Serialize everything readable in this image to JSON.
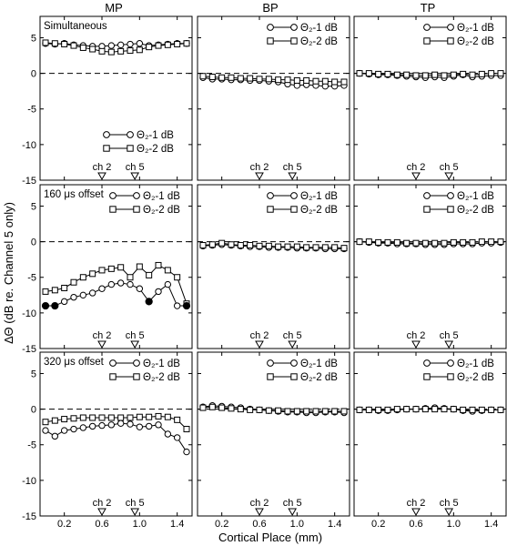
{
  "figure": {
    "ylabel": "ΔΘ (dB re. Channel 5 only)",
    "xlabel": "Cortical Place (mm)"
  },
  "chart_data": {
    "type": "line",
    "ylim": [
      -15,
      8
    ],
    "xlim": [
      0,
      1.5
    ],
    "yticks": [
      5,
      0,
      -5,
      -10,
      -15
    ],
    "xticks": [
      0.2,
      0.6,
      1.0,
      1.4
    ],
    "xtick_labels": [
      "0.2",
      "0.6",
      "1.0",
      "1.4"
    ],
    "columns": [
      "MP",
      "BP",
      "TP"
    ],
    "rows": [
      "Simultaneous",
      "160 μs offset",
      "320 μs offset"
    ],
    "channel_markers": [
      {
        "label": "ch 2",
        "x": 0.6
      },
      {
        "label": "ch 5",
        "x": 0.95
      }
    ],
    "legend": [
      "Θ₂-1 dB",
      "Θ₂-2 dB"
    ],
    "reference_line_y": 0,
    "x": [
      0.0,
      0.1,
      0.2,
      0.3,
      0.4,
      0.5,
      0.6,
      0.7,
      0.8,
      0.9,
      1.0,
      1.1,
      1.2,
      1.3,
      1.4,
      1.5
    ],
    "panels": [
      {
        "row": 0,
        "col": 0,
        "series": [
          {
            "values": [
              4.2,
              4.1,
              4.2,
              4.0,
              3.9,
              3.8,
              3.8,
              3.9,
              4.0,
              4.1,
              4.2,
              3.9,
              4.0,
              4.1,
              4.2,
              4.2
            ]
          },
          {
            "values": [
              4.3,
              4.2,
              4.1,
              3.9,
              3.6,
              3.4,
              3.1,
              3.0,
              3.1,
              3.2,
              3.3,
              3.7,
              3.9,
              4.0,
              4.1,
              4.2
            ]
          }
        ]
      },
      {
        "row": 0,
        "col": 1,
        "series": [
          {
            "values": [
              -0.6,
              -0.8,
              -0.8,
              -0.9,
              -0.9,
              -1.0,
              -1.0,
              -1.1,
              -1.2,
              -1.5,
              -1.7,
              -1.6,
              -1.7,
              -1.8,
              -1.8,
              -1.7
            ]
          },
          {
            "values": [
              -0.4,
              -0.5,
              -0.6,
              -0.6,
              -0.7,
              -0.7,
              -0.8,
              -0.8,
              -0.9,
              -0.9,
              -1.0,
              -1.0,
              -1.1,
              -1.1,
              -1.2,
              -1.2
            ]
          }
        ]
      },
      {
        "row": 0,
        "col": 2,
        "series": [
          {
            "values": [
              0.0,
              -0.1,
              -0.2,
              -0.2,
              -0.3,
              -0.4,
              -0.5,
              -0.6,
              -0.5,
              -0.6,
              -0.4,
              -0.2,
              -0.5,
              -0.4,
              -0.3,
              -0.3
            ]
          },
          {
            "values": [
              0.0,
              0.0,
              -0.1,
              -0.1,
              -0.2,
              -0.2,
              -0.3,
              -0.3,
              -0.2,
              -0.3,
              -0.2,
              -0.1,
              -0.2,
              -0.1,
              0.0,
              0.0
            ]
          }
        ]
      },
      {
        "row": 1,
        "col": 0,
        "series": [
          {
            "values": [
              -9.0,
              -9.0,
              -8.4,
              -7.8,
              -7.5,
              -7.2,
              -6.6,
              -6.0,
              -5.8,
              -6.0,
              -6.6,
              -8.4,
              -7.0,
              -6.0,
              -9.0,
              -9.0
            ]
          },
          {
            "values": [
              -7.0,
              -6.8,
              -6.5,
              -5.7,
              -5.0,
              -4.5,
              -4.0,
              -3.8,
              -3.6,
              -5.0,
              -3.5,
              -4.7,
              -3.3,
              -4.0,
              -5.0,
              -8.7
            ]
          },
          {
            "values": [
              -9.0,
              -9.0,
              null,
              null,
              null,
              null,
              null,
              null,
              null,
              null,
              null,
              -8.4,
              null,
              null,
              null,
              -9.0
            ],
            "filled": true
          }
        ]
      },
      {
        "row": 1,
        "col": 1,
        "series": [
          {
            "values": [
              -0.6,
              -0.5,
              -0.4,
              -0.5,
              -0.6,
              -0.7,
              -0.7,
              -0.8,
              -0.8,
              -0.8,
              -0.9,
              -0.9,
              -0.9,
              -1.0,
              -1.0,
              -1.0
            ]
          },
          {
            "values": [
              -0.5,
              -0.4,
              -0.2,
              -0.4,
              -0.5,
              -0.5,
              -0.6,
              -0.6,
              -0.7,
              -0.7,
              -0.7,
              -0.8,
              -0.8,
              -0.8,
              -0.8,
              -0.9
            ]
          }
        ]
      },
      {
        "row": 1,
        "col": 2,
        "series": [
          {
            "values": [
              0.0,
              -0.1,
              -0.2,
              -0.2,
              -0.3,
              -0.3,
              -0.3,
              -0.4,
              -0.4,
              -0.4,
              -0.3,
              -0.3,
              -0.3,
              -0.2,
              -0.2,
              -0.1
            ]
          },
          {
            "values": [
              0.0,
              0.0,
              -0.1,
              -0.1,
              -0.1,
              -0.2,
              -0.2,
              -0.2,
              -0.2,
              -0.2,
              -0.1,
              -0.1,
              -0.1,
              0.0,
              0.0,
              0.0
            ]
          }
        ]
      },
      {
        "row": 2,
        "col": 0,
        "series": [
          {
            "values": [
              -3.0,
              -3.8,
              -3.0,
              -2.8,
              -2.6,
              -2.4,
              -2.3,
              -2.2,
              -2.0,
              -2.1,
              -2.5,
              -2.4,
              -2.2,
              -3.5,
              -4.0,
              -6.0
            ]
          },
          {
            "values": [
              -1.8,
              -1.6,
              -1.4,
              -1.3,
              -1.2,
              -1.2,
              -1.2,
              -1.2,
              -1.2,
              -1.2,
              -1.1,
              -1.1,
              -1.0,
              -1.1,
              -1.5,
              -2.8
            ]
          }
        ]
      },
      {
        "row": 2,
        "col": 1,
        "series": [
          {
            "values": [
              0.3,
              0.5,
              0.4,
              0.3,
              0.2,
              0.0,
              -0.1,
              -0.2,
              -0.3,
              -0.4,
              -0.4,
              -0.5,
              -0.5,
              -0.4,
              -0.4,
              -0.5
            ]
          },
          {
            "values": [
              0.2,
              0.3,
              0.2,
              0.1,
              0.0,
              -0.1,
              -0.1,
              -0.2,
              -0.2,
              -0.3,
              -0.3,
              -0.3,
              -0.3,
              -0.3,
              -0.3,
              -0.3
            ]
          }
        ]
      },
      {
        "row": 2,
        "col": 2,
        "series": [
          {
            "values": [
              -0.1,
              -0.1,
              -0.2,
              -0.2,
              -0.1,
              0.0,
              0.0,
              0.1,
              0.2,
              0.1,
              0.0,
              -0.2,
              -0.3,
              -0.2,
              -0.1,
              -0.1
            ]
          },
          {
            "values": [
              -0.1,
              -0.1,
              -0.1,
              -0.1,
              0.0,
              0.0,
              0.0,
              0.0,
              0.0,
              0.0,
              0.0,
              -0.1,
              -0.1,
              -0.1,
              -0.1,
              -0.1
            ]
          }
        ]
      }
    ]
  }
}
